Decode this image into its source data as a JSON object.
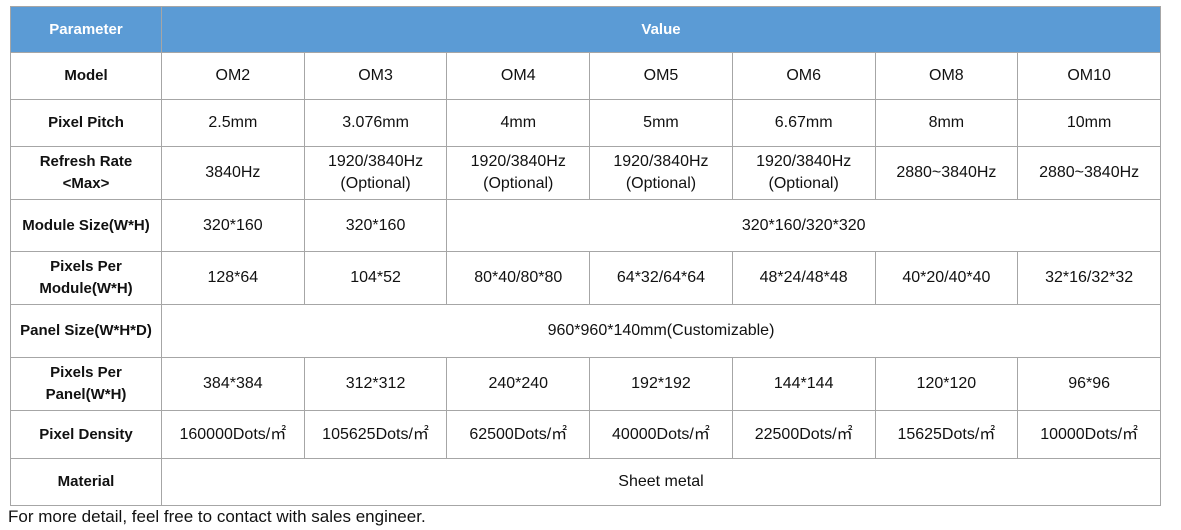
{
  "table": {
    "header": [
      "Parameter",
      "Value"
    ],
    "rows": [
      {
        "label": "Model",
        "cells": [
          "OM2",
          "OM3",
          "OM4",
          "OM5",
          "OM6",
          "OM8",
          "OM10"
        ]
      },
      {
        "label": "Pixel Pitch",
        "cells": [
          "2.5mm",
          "3.076mm",
          "4mm",
          "5mm",
          "6.67mm",
          "8mm",
          "10mm"
        ]
      },
      {
        "label": "Refresh Rate\n<Max>",
        "cells": [
          "3840Hz",
          "1920/3840Hz\n(Optional)",
          "1920/3840Hz\n(Optional)",
          "1920/3840Hz\n(Optional)",
          "1920/3840Hz\n(Optional)",
          "2880~3840Hz",
          "2880~3840Hz"
        ]
      },
      {
        "label": "Module Size(W*H)",
        "cells": [
          "320*160",
          "320*160",
          "320*160/320*320"
        ]
      },
      {
        "label": "Pixels Per\nModule(W*H)",
        "cells": [
          "128*64",
          "104*52",
          "80*40/80*80",
          "64*32/64*64",
          "48*24/48*48",
          "40*20/40*40",
          "32*16/32*32"
        ]
      },
      {
        "label": "Panel Size(W*H*D)",
        "cells": [
          "960*960*140mm(Customizable)"
        ]
      },
      {
        "label": "Pixels Per\nPanel(W*H)",
        "cells": [
          "384*384",
          "312*312",
          "240*240",
          "192*192",
          "144*144",
          "120*120",
          "96*96"
        ]
      },
      {
        "label": "Pixel Density",
        "cells": [
          "160000Dots/㎡",
          "105625Dots/㎡",
          "62500Dots/㎡",
          "40000Dots/㎡",
          "22500Dots/㎡",
          "15625Dots/㎡",
          "10000Dots/㎡"
        ]
      },
      {
        "label": "Material",
        "cells": [
          "Sheet metal"
        ]
      }
    ]
  },
  "footer": "For more detail, feel free to contact with sales engineer."
}
